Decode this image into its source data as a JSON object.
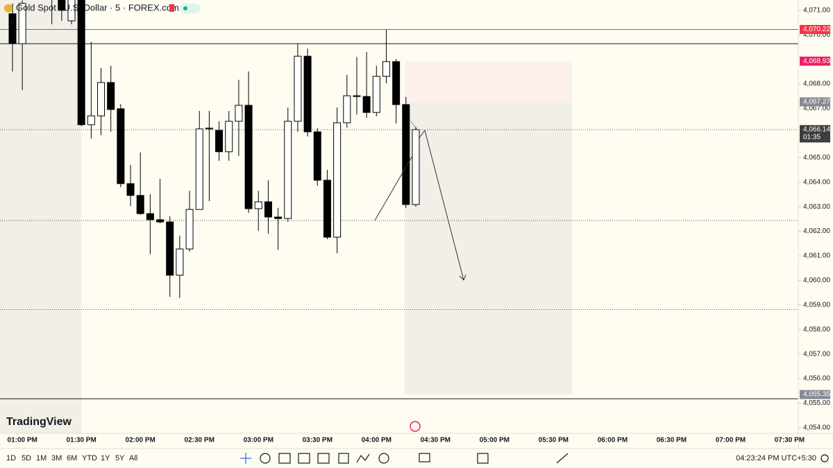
{
  "chart_data": {
    "type": "candlestick",
    "categories": [
      null,
      "01:00 PM",
      null,
      null,
      null,
      null,
      null,
      "01:30 PM",
      null,
      null,
      null,
      null,
      null,
      "02:00 PM",
      null,
      null,
      null,
      null,
      null,
      "02:30 PM",
      null,
      null,
      null,
      null,
      null,
      "03:00 PM",
      null,
      null,
      null,
      null,
      null,
      "03:30 PM",
      null,
      null,
      null,
      null,
      null,
      "04:00 PM",
      null,
      null,
      null,
      null,
      null,
      "04:30 PM",
      null,
      null,
      null,
      null,
      null,
      "05:00 PM",
      null,
      null,
      null,
      null,
      null,
      "05:30 PM",
      null,
      null,
      null,
      null,
      null,
      "06:00 PM",
      null,
      null,
      null,
      null,
      null,
      "06:30 PM",
      null,
      null,
      null,
      null,
      null,
      "07:00 PM",
      null,
      null,
      null,
      null,
      null,
      "07:30 PM"
    ],
    "open": [
      4070.86,
      4069.64,
      null,
      null,
      4071.6,
      4071.6,
      4070.57,
      4071.6,
      4066.34,
      4066.7,
      4068.06,
      4066.99,
      4063.94,
      4063.46,
      4062.72,
      4062.47,
      4062.38,
      4060.21,
      4061.28,
      4062.89,
      4066.17,
      4066.11,
      4065.24,
      4066.48,
      4067.13,
      4062.92,
      4063.2,
      4062.58,
      4062.52,
      4066.48,
      4069.13,
      4066.05,
      4064.08,
      4061.76,
      4066.42,
      4067.52,
      4067.49,
      4066.84,
      4068.31,
      4068.91,
      4067.16,
      4063.09,
      null,
      null,
      null,
      null,
      null,
      null,
      null,
      null,
      null,
      null,
      null,
      null,
      null,
      null,
      null,
      null,
      null,
      null,
      null,
      null,
      null,
      null,
      null,
      null,
      null,
      null,
      null,
      null,
      null,
      null,
      null,
      null,
      null,
      null,
      null,
      null,
      null,
      null
    ],
    "high": [
      4071.28,
      4071.4,
      null,
      null,
      4071.7,
      4071.7,
      4071.7,
      4071.7,
      4069.72,
      4068.65,
      4068.74,
      4067.18,
      4064.7,
      4065.21,
      4063.51,
      4064.13,
      4062.61,
      4061.82,
      4063.65,
      4066.9,
      4066.9,
      4066.48,
      4066.9,
      4068.17,
      4068.51,
      4063.65,
      4064.08,
      4062.95,
      4067.04,
      4069.64,
      4069.44,
      4066.2,
      4064.5,
      4067.04,
      4068.37,
      4069.1,
      4069.3,
      4068.74,
      4070.21,
      4069.02,
      4067.47,
      4066.25,
      null,
      null,
      null,
      null,
      null,
      null,
      null,
      null,
      null,
      null,
      null,
      null,
      null,
      null,
      null,
      null,
      null,
      null,
      null,
      null,
      null,
      null,
      null,
      null,
      null,
      null,
      null,
      null,
      null,
      null,
      null,
      null,
      null,
      null,
      null,
      null,
      null,
      null
    ],
    "low": [
      4068.51,
      4067.75,
      null,
      null,
      4070.43,
      4070.57,
      4070.43,
      4066.28,
      4065.77,
      4065.91,
      4066.05,
      4063.8,
      4063.03,
      4062.67,
      4061.06,
      4062.33,
      4059.33,
      4059.28,
      4061.17,
      4062.89,
      4063.23,
      4064.87,
      4064.87,
      4065.07,
      4062.75,
      4062.02,
      4061.9,
      4061.25,
      4062.38,
      4066.05,
      4065.86,
      4063.85,
      4061.68,
      4061.11,
      4066.22,
      4066.76,
      4066.62,
      4066.68,
      4068.03,
      4066.39,
      4062.95,
      4063.0,
      null,
      null,
      null,
      null,
      null,
      null,
      null,
      null,
      null,
      null,
      null,
      null,
      null,
      null,
      null,
      null,
      null,
      null,
      null,
      null,
      null,
      null,
      null,
      null,
      null,
      null,
      null,
      null,
      null,
      null,
      null,
      null,
      null,
      null,
      null,
      null,
      null,
      null
    ],
    "close": [
      4069.64,
      4071.28,
      null,
      null,
      4071.5,
      4071.0,
      4071.6,
      4066.34,
      4066.7,
      4068.06,
      4066.96,
      4063.94,
      4063.46,
      4062.72,
      4062.47,
      4062.38,
      4060.21,
      4061.28,
      4062.89,
      4066.17,
      4066.2,
      4065.24,
      4066.48,
      4067.13,
      4062.92,
      4063.2,
      4062.58,
      4062.52,
      4066.48,
      4069.13,
      4066.05,
      4064.08,
      4061.76,
      4066.42,
      4067.52,
      4067.49,
      4066.84,
      4068.31,
      4068.91,
      4067.16,
      4063.09,
      4066.14,
      null,
      null,
      null,
      null,
      null,
      null,
      null,
      null,
      null,
      null,
      null,
      null,
      null,
      null,
      null,
      null,
      null,
      null,
      null,
      null,
      null,
      null,
      null,
      null,
      null,
      null,
      null,
      null,
      null,
      null,
      null,
      null,
      null,
      null,
      null,
      null,
      null,
      null
    ],
    "up_color": "#ffffff",
    "down_color": "#000000",
    "ylim": [
      4053.77,
      4071.42
    ],
    "yticks": [
      {
        "value": 4071,
        "label": "4,071.00"
      },
      {
        "value": 4070,
        "label": "4,070.00"
      },
      {
        "value": 4068,
        "label": "4,068.00"
      },
      {
        "value": 4067,
        "label": "4,067.00"
      },
      {
        "value": 4065,
        "label": "4,065.00"
      },
      {
        "value": 4064,
        "label": "4,064.00"
      },
      {
        "value": 4063,
        "label": "4,063.00"
      },
      {
        "value": 4062,
        "label": "4,062.00"
      },
      {
        "value": 4061,
        "label": "4,061.00"
      },
      {
        "value": 4060,
        "label": "4,060.00"
      },
      {
        "value": 4059,
        "label": "4,059.00"
      },
      {
        "value": 4058,
        "label": "4,058.00"
      },
      {
        "value": 4057,
        "label": "4,057.00"
      },
      {
        "value": 4056,
        "label": "4,056.00"
      },
      {
        "value": 4055,
        "label": "4,055.00"
      },
      {
        "value": 4054,
        "label": "4,054.00"
      }
    ],
    "price_labels": [
      {
        "value": 4070.22,
        "label": "4,070.22",
        "color": "#f23645"
      },
      {
        "value": 4068.93,
        "label": "4,068.93",
        "color": "#e91e63"
      },
      {
        "value": 4067.27,
        "label": "4,067.27",
        "color": "#868993"
      },
      {
        "value": 4066.14,
        "label": "4,066.14",
        "color": "#3d3d3d",
        "countdown": "01:35"
      },
      {
        "value": 4055.35,
        "label": "4,055.35",
        "color": "#868993"
      }
    ],
    "horizontal_lines": [
      {
        "value": 4070.22,
        "color": "#f23645",
        "style": "solid"
      },
      {
        "value": 4069.64,
        "color": "#131722",
        "style": "solid"
      },
      {
        "value": 4066.14,
        "color": "#555555",
        "style": "dotted"
      },
      {
        "value": 4062.44,
        "color": "#555555",
        "style": "dotted"
      },
      {
        "value": 4058.81,
        "color": "#555555",
        "style": "dotted"
      },
      {
        "value": 4055.18,
        "color": "#131722",
        "style": "solid"
      }
    ],
    "zone_colors": {
      "stop": "#fdf0ec",
      "target": "#f1efe8"
    }
  },
  "ui": {
    "symbol": "Gold Spot / U.S. Dollar · 5 · FOREX.com",
    "indicator_count": "6",
    "logo": "TradingView",
    "ranges": [
      "1D",
      "5D",
      "1M",
      "3M",
      "6M",
      "YTD",
      "1Y",
      "5Y",
      "All"
    ],
    "clock": "04:23:24 PM UTC+5:30"
  }
}
